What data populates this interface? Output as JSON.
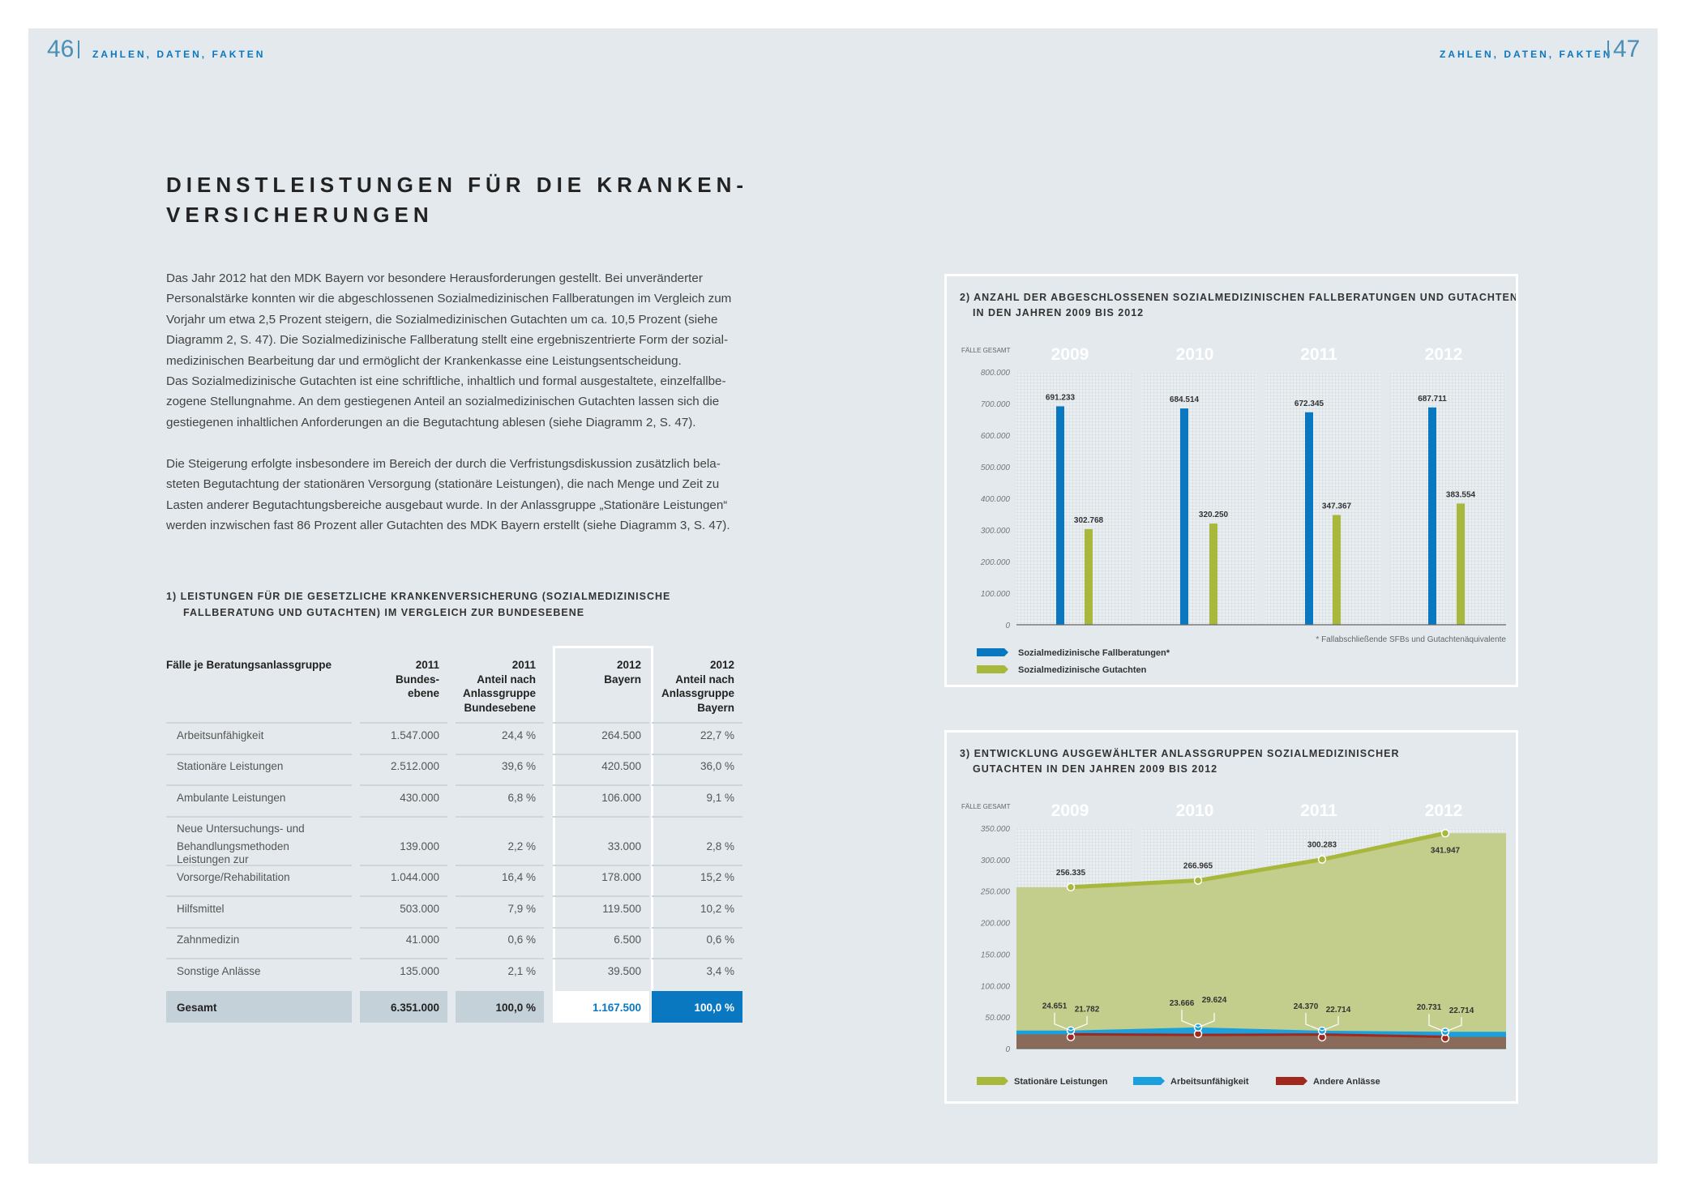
{
  "header": {
    "left_page": "46",
    "right_page": "47",
    "running_title": "ZAHLEN, DATEN, FAKTEN"
  },
  "title": [
    "DIENSTLEISTUNGEN FÜR DIE KRANKEN-",
    "VERSICHERUNGEN"
  ],
  "paragraph1": [
    "Das Jahr 2012 hat den MDK Bayern vor besondere Herausforderungen gestellt. Bei unveränderter",
    "Personalstärke konnten wir die abgeschlossenen Sozialmedizinischen Fallberatungen im Vergleich zum",
    "Vorjahr um etwa 2,5 Prozent steigern, die Sozialmedizinischen Gutachten um ca. 10,5 Prozent (siehe",
    "Diagramm 2, S. 47). Die Sozialmedizinische Fallberatung stellt eine ergebniszentrierte Form der sozial-",
    "medizinischen Bearbeitung dar und ermöglicht der Krankenkasse eine Leistungsentscheidung.",
    "Das Sozialmedizinische Gutachten ist eine schriftliche, inhaltlich und formal ausgestaltete, einzelfallbe-",
    "zogene Stellungnahme. An dem gestiegenen Anteil an sozialmedizinischen Gutachten lassen sich die",
    "gestiegenen inhaltlichen Anforderungen an die Begutachtung ablesen (siehe Diagramm 2, S. 47)."
  ],
  "paragraph2": [
    "Die Steigerung erfolgte insbesondere im Bereich der durch die Verfristungsdiskussion zusätzlich bela-",
    "steten Begutachtung der stationären Versorgung (stationäre Leistungen), die nach Menge und Zeit zu",
    "Lasten anderer Begutachtungsbereiche ausgebaut wurde. In der Anlassgruppe „Stationäre Leistungen“",
    "werden inzwischen fast 86 Prozent aller Gutachten des MDK Bayern erstellt (siehe Diagramm 3, S. 47)."
  ],
  "table": {
    "caption": [
      "1) LEISTUNGEN FÜR DIE GESETZLICHE KRANKENVERSICHERUNG (SOZIALMEDIZINISCHE",
      "FALLBERATUNG UND GUTACHTEN) IM VERGLEICH ZUR BUNDESEBENE"
    ],
    "headers": [
      "Fälle je Beratungsanlassgruppe",
      "2011\nBundes-\nebene",
      "2011\nAnteil nach\nAnlassgruppe\nBundesebene",
      "2012\nBayern",
      "2012\nAnteil nach\nAnlassgruppe\nBayern"
    ],
    "rows": [
      [
        "Arbeitsunfähigkeit",
        "1.547.000",
        "24,4 %",
        "264.500",
        "22,7 %"
      ],
      [
        "Stationäre Leistungen",
        "2.512.000",
        "39,6 %",
        "420.500",
        "36,0 %"
      ],
      [
        "Ambulante Leistungen",
        "430.000",
        "6,8 %",
        "106.000",
        "9,1 %"
      ],
      [
        "Neue Untersuchungs- und\nBehandlungsmethoden",
        "139.000",
        "2,2 %",
        "33.000",
        "2,8 %"
      ],
      [
        "Leistungen zur Vorsorge/Rehabilitation",
        "1.044.000",
        "16,4 %",
        "178.000",
        "15,2 %"
      ],
      [
        "Hilfsmittel",
        "503.000",
        "7,9 %",
        "119.500",
        "10,2 %"
      ],
      [
        "Zahnmedizin",
        "41.000",
        "0,6 %",
        "6.500",
        "0,6 %"
      ],
      [
        "Sonstige Anlässe",
        "135.000",
        "2,1 %",
        "39.500",
        "3,4 %"
      ]
    ],
    "total": [
      "Gesamt",
      "6.351.000",
      "100,0 %",
      "1.167.500",
      "100,0 %"
    ]
  },
  "colors": {
    "blue": "#0a78c0",
    "green": "#a8b83c",
    "green_area": "#c3cd8c",
    "light_blue": "#1aa0dc",
    "brown": "#8a6a58",
    "red": "#a0281e"
  },
  "chart_data": [
    {
      "type": "bar",
      "title": [
        "2) ANZAHL DER ABGESCHLOSSENEN SOZIALMEDIZINISCHEN FALLBERATUNGEN UND GUTACHTEN",
        "IN DEN JAHREN 2009 BIS 2012"
      ],
      "ylabel": "FÄLLE GESAMT",
      "categories": [
        "2009",
        "2010",
        "2011",
        "2012"
      ],
      "ylim": [
        0,
        800000
      ],
      "yticks": [
        "0",
        "100.000",
        "200.000",
        "300.000",
        "400.000",
        "500.000",
        "600.000",
        "700.000",
        "800.000"
      ],
      "series": [
        {
          "name": "Sozialmedizinische Fallberatungen*",
          "values": [
            691233,
            684514,
            672345,
            687711
          ],
          "labels": [
            "691.233",
            "684.514",
            "672.345",
            "687.711"
          ]
        },
        {
          "name": "Sozialmedizinische Gutachten",
          "values": [
            302768,
            320250,
            347367,
            383554
          ],
          "labels": [
            "302.768",
            "320.250",
            "347.367",
            "383.554"
          ]
        }
      ],
      "footnote": "* Fallabschließende SFBs und Gutachtenäquivalente",
      "legend": "bottom-left",
      "grid": true
    },
    {
      "type": "area",
      "title": [
        "3) ENTWICKLUNG AUSGEWÄHLTER ANLASSGRUPPEN SOZIALMEDIZINISCHER",
        "GUTACHTEN IN DEN JAHREN 2009 BIS 2012"
      ],
      "ylabel": "FÄLLE GESAMT",
      "categories": [
        "2009",
        "2010",
        "2011",
        "2012"
      ],
      "ylim": [
        0,
        350000
      ],
      "yticks": [
        "0",
        "50.000",
        "100.000",
        "150.000",
        "200.000",
        "250.000",
        "300.000",
        "350.000"
      ],
      "series": [
        {
          "name": "Stationäre Leistungen",
          "values": [
            256335,
            266965,
            300283,
            341947
          ],
          "labels": [
            "256.335",
            "266.965",
            "300.283",
            "341.947"
          ]
        },
        {
          "name": "Arbeitsunfähigkeit",
          "values": [
            21782,
            29624,
            22714,
            22714
          ],
          "labels": [
            "21.782",
            "29.624",
            "22.714",
            "22.714"
          ]
        },
        {
          "name": "Andere Anlässe",
          "values": [
            24651,
            23666,
            24370,
            20731
          ],
          "labels": [
            "24.651",
            "23.666",
            "24.370",
            "20.731"
          ]
        }
      ],
      "legend": "bottom",
      "grid": true
    }
  ]
}
